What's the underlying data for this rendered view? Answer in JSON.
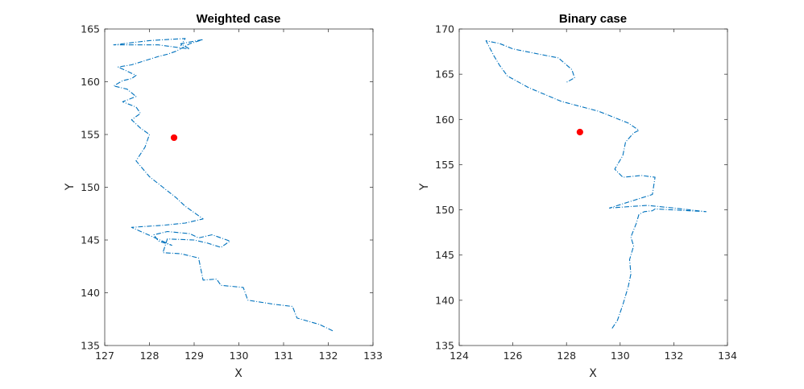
{
  "chart_data": [
    {
      "type": "line",
      "title": "Weighted case",
      "xlabel": "X",
      "ylabel": "Y",
      "xlim": [
        127,
        133
      ],
      "ylim": [
        135,
        165
      ],
      "xticks": [
        127,
        128,
        129,
        130,
        131,
        132,
        133
      ],
      "yticks": [
        135,
        140,
        145,
        150,
        155,
        160,
        165
      ],
      "grid": false,
      "series": [
        {
          "color": "#0072BD",
          "style": "dash-dot",
          "x": [
            132.1,
            131.8,
            131.3,
            131.2,
            130.8,
            130.2,
            130.1,
            129.6,
            129.5,
            129.2,
            129.1,
            128.7,
            128.3,
            128.4,
            129.0,
            129.3,
            129.6,
            129.8,
            129.6,
            129.4,
            129.1,
            128.9,
            128.4,
            128.1,
            128.2,
            128.5,
            127.6,
            128.3,
            128.8,
            129.2,
            129.0,
            128.8,
            128.6,
            128.3,
            128.0,
            127.7,
            127.9,
            128.0,
            127.8,
            127.6,
            127.8,
            127.7,
            127.4,
            127.7,
            127.5,
            127.2,
            127.4,
            127.6,
            127.7,
            127.5,
            127.3,
            127.6,
            127.9,
            128.2,
            128.4,
            128.6,
            128.9,
            129.2,
            128.7,
            128.9,
            128.2,
            127.2,
            128.0,
            128.8,
            128.7
          ],
          "y": [
            136.4,
            137.0,
            137.6,
            138.7,
            138.9,
            139.3,
            140.5,
            140.7,
            141.3,
            141.2,
            143.3,
            143.7,
            143.8,
            145.1,
            145.0,
            144.7,
            144.3,
            144.9,
            145.2,
            145.5,
            145.2,
            145.6,
            145.8,
            145.5,
            144.9,
            144.5,
            146.2,
            146.4,
            146.6,
            147.0,
            147.6,
            148.2,
            149.0,
            150.0,
            151.0,
            152.5,
            153.8,
            155.0,
            155.6,
            156.4,
            157.0,
            157.6,
            158.1,
            158.6,
            159.3,
            159.6,
            160.1,
            160.3,
            160.6,
            161.0,
            161.4,
            161.6,
            162.0,
            162.4,
            162.6,
            162.9,
            163.6,
            164.0,
            163.6,
            163.1,
            163.5,
            163.5,
            163.9,
            164.1,
            163.4
          ]
        }
      ],
      "marker": {
        "x": 128.55,
        "y": 154.7,
        "color": "#FF0000"
      }
    },
    {
      "type": "line",
      "title": "Binary case",
      "xlabel": "X",
      "ylabel": "Y",
      "xlim": [
        124,
        134
      ],
      "ylim": [
        135,
        170
      ],
      "xticks": [
        124,
        126,
        128,
        130,
        132,
        134
      ],
      "yticks": [
        135,
        140,
        145,
        150,
        155,
        160,
        165,
        170
      ],
      "grid": false,
      "series": [
        {
          "color": "#0072BD",
          "style": "dash-dot",
          "x": [
            129.7,
            129.9,
            130.1,
            130.3,
            130.4,
            130.35,
            130.5,
            130.4,
            130.6,
            130.7,
            130.9,
            131.2,
            131.3,
            133.2,
            132.0,
            131.0,
            129.6,
            131.2,
            131.3,
            130.8,
            130.1,
            129.8,
            130.1,
            130.2,
            130.5,
            130.7,
            130.3,
            129.2,
            127.8,
            126.6,
            125.8,
            125.5,
            125.3,
            125.0,
            125.5,
            126.0,
            127.0,
            127.7,
            128.2,
            128.3,
            128.0
          ],
          "y": [
            136.9,
            137.8,
            139.5,
            141.5,
            142.9,
            144.5,
            146.0,
            147.0,
            148.5,
            149.5,
            149.8,
            149.9,
            150.1,
            149.8,
            150.2,
            150.5,
            150.2,
            151.7,
            153.6,
            153.8,
            153.6,
            154.5,
            156.0,
            157.5,
            158.5,
            158.8,
            159.6,
            160.9,
            162.0,
            163.5,
            164.8,
            166.0,
            167.0,
            168.7,
            168.4,
            167.8,
            167.2,
            166.8,
            165.5,
            164.6,
            164.1
          ]
        }
      ],
      "marker": {
        "x": 128.5,
        "y": 158.6,
        "color": "#FF0000"
      }
    }
  ]
}
